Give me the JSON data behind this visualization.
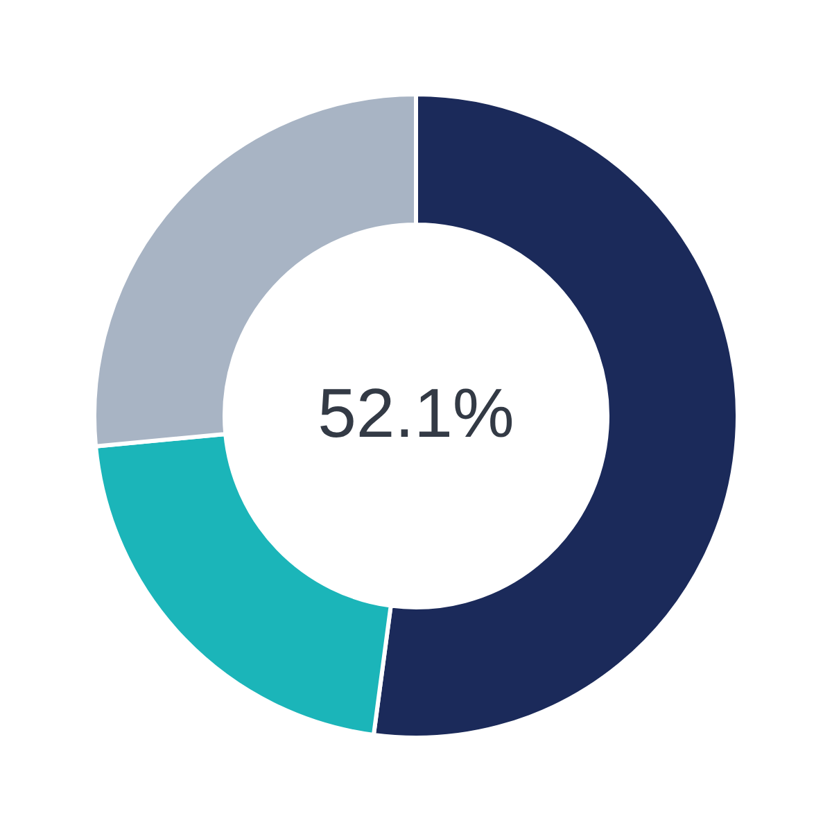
{
  "chart_data": {
    "type": "donut",
    "categories": [
      null,
      null,
      null
    ],
    "values": [
      52.1,
      21.4,
      26.5
    ],
    "colors": [
      "#1b2a5a",
      "#1bb5b9",
      "#a8b4c4"
    ],
    "annotations": [
      "52.1%"
    ]
  }
}
